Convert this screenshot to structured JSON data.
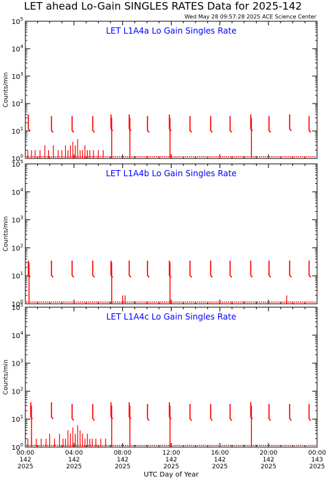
{
  "header": {
    "title": "LET ahead Lo-Gain SINGLES RATES Data for 2025-142",
    "timestamp": "Wed May 28 09:57:28 2025 ACE Science Center"
  },
  "colors": {
    "data": "#ff0000",
    "panel_title": "#0000ff",
    "axes": "#000000"
  },
  "chart_data": [
    {
      "type": "scatter",
      "title": "LET L1A4a Lo Gain Singles Rate",
      "ylabel": "Counts/min",
      "yscale": "log",
      "ylim": [
        1,
        100000
      ],
      "xlim": [
        0,
        24
      ],
      "spikes": [
        {
          "x": 0.3,
          "y": 40
        },
        {
          "x": 2.2,
          "y": 35
        },
        {
          "x": 3.9,
          "y": 35
        },
        {
          "x": 5.6,
          "y": 35
        },
        {
          "x": 7.1,
          "y": 40
        },
        {
          "x": 8.6,
          "y": 40
        },
        {
          "x": 10.1,
          "y": 35
        },
        {
          "x": 11.9,
          "y": 40
        },
        {
          "x": 13.6,
          "y": 35
        },
        {
          "x": 15.3,
          "y": 35
        },
        {
          "x": 16.9,
          "y": 35
        },
        {
          "x": 18.6,
          "y": 40
        },
        {
          "x": 20.1,
          "y": 35
        },
        {
          "x": 21.8,
          "y": 40
        },
        {
          "x": 23.4,
          "y": 35
        }
      ],
      "drops": [
        7.1,
        8.6,
        11.9,
        18.6
      ],
      "noise_x": [
        0.2,
        0.5,
        0.8,
        1.2,
        1.6,
        1.9,
        2.3,
        2.7,
        3.0,
        3.3,
        3.5,
        3.7,
        3.9,
        4.1,
        4.3,
        4.5,
        4.7,
        4.9,
        5.1,
        5.3,
        5.6,
        6.0,
        6.4
      ],
      "noise_y": [
        2,
        2,
        2,
        2,
        3,
        2,
        3,
        2,
        2,
        3,
        2,
        3,
        4,
        3,
        5,
        2,
        2,
        3,
        2,
        2,
        2,
        2,
        2
      ]
    },
    {
      "type": "scatter",
      "title": "LET L1A4b Lo Gain Singles Rate",
      "ylabel": "Counts/min",
      "yscale": "log",
      "ylim": [
        1,
        100000
      ],
      "xlim": [
        0,
        24
      ],
      "spikes": [
        {
          "x": 0.3,
          "y": 35
        },
        {
          "x": 2.2,
          "y": 35
        },
        {
          "x": 3.9,
          "y": 35
        },
        {
          "x": 5.6,
          "y": 35
        },
        {
          "x": 7.1,
          "y": 35
        },
        {
          "x": 8.6,
          "y": 35
        },
        {
          "x": 10.1,
          "y": 35
        },
        {
          "x": 11.9,
          "y": 35
        },
        {
          "x": 13.6,
          "y": 35
        },
        {
          "x": 15.3,
          "y": 35
        },
        {
          "x": 16.9,
          "y": 35
        },
        {
          "x": 18.6,
          "y": 35
        },
        {
          "x": 20.1,
          "y": 35
        },
        {
          "x": 21.8,
          "y": 35
        },
        {
          "x": 23.4,
          "y": 35
        }
      ],
      "drops": [
        0.3,
        7.1,
        11.9
      ],
      "noise_x": [
        8.0,
        8.2,
        21.5
      ],
      "noise_y": [
        2,
        2,
        2
      ]
    },
    {
      "type": "scatter",
      "title": "LET L1A4c Lo Gain Singles Rate",
      "ylabel": "Counts/min",
      "yscale": "log",
      "ylim": [
        1,
        100000
      ],
      "xlim": [
        0,
        24
      ],
      "xlabel": "UTC Day of Year",
      "xticks": [
        {
          "time": "00:00",
          "doy": "142",
          "year": "2025"
        },
        {
          "time": "04:00",
          "doy": "142",
          "year": "2025"
        },
        {
          "time": "08:00",
          "doy": "142",
          "year": "2025"
        },
        {
          "time": "12:00",
          "doy": "142",
          "year": "2025"
        },
        {
          "time": "16:00",
          "doy": "142",
          "year": "2025"
        },
        {
          "time": "20:00",
          "doy": "142",
          "year": "2025"
        },
        {
          "time": "00:00",
          "doy": "143",
          "year": "2025"
        }
      ],
      "spikes": [
        {
          "x": 0.5,
          "y": 40
        },
        {
          "x": 2.2,
          "y": 40
        },
        {
          "x": 3.9,
          "y": 35
        },
        {
          "x": 5.6,
          "y": 35
        },
        {
          "x": 7.1,
          "y": 40
        },
        {
          "x": 8.6,
          "y": 40
        },
        {
          "x": 10.1,
          "y": 35
        },
        {
          "x": 11.9,
          "y": 40
        },
        {
          "x": 13.6,
          "y": 35
        },
        {
          "x": 15.3,
          "y": 35
        },
        {
          "x": 16.9,
          "y": 35
        },
        {
          "x": 18.6,
          "y": 40
        },
        {
          "x": 20.1,
          "y": 35
        },
        {
          "x": 21.8,
          "y": 35
        },
        {
          "x": 23.4,
          "y": 35
        }
      ],
      "drops": [
        0.5,
        7.1,
        8.6,
        11.9,
        18.6
      ],
      "noise_x": [
        0.2,
        0.5,
        0.9,
        1.3,
        1.7,
        2.0,
        2.4,
        2.8,
        3.1,
        3.3,
        3.5,
        3.7,
        3.9,
        4.1,
        4.3,
        4.5,
        4.7,
        4.9,
        5.1,
        5.3,
        5.5,
        5.8,
        6.2,
        6.6
      ],
      "noise_y": [
        2,
        2,
        2,
        2,
        2,
        3,
        2,
        3,
        2,
        2,
        4,
        3,
        5,
        3,
        6,
        4,
        3,
        2,
        3,
        2,
        2,
        2,
        2,
        2
      ]
    }
  ]
}
